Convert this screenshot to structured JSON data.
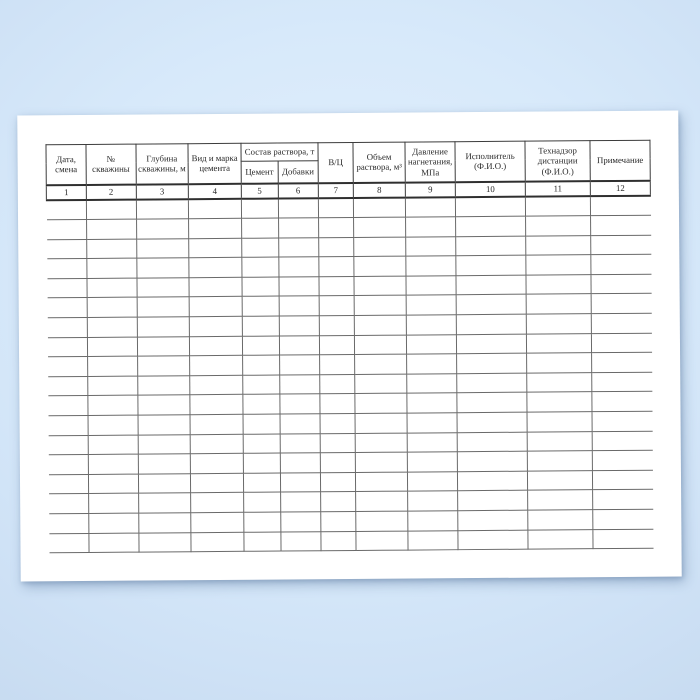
{
  "colors": {
    "background_light": "#e3f0fd",
    "background_edge": "#c5d9ef",
    "sheet": "#ffffff",
    "header_rule": "#3c3c3c",
    "grid_rule": "#6a6a6a",
    "text": "#2a2a2a"
  },
  "sheet": {
    "kind": "blank journal form page, slightly rotated, drop shadow"
  },
  "table": {
    "group_header": "Состав раствора, т",
    "headers": {
      "col1": "Дата, смена",
      "col2": "№ скважины",
      "col3": "Глубина скважины, м",
      "col4": "Вид и марка цемента",
      "col5": "Цемент",
      "col6": "Добавки",
      "col7": "В/Ц",
      "col8": "Объем раствора, м³",
      "col9": "Давление нагнетания, МПа",
      "col10": "Исполнитель (Ф.И.О.)",
      "col11": "Технадзор дистанции (Ф.И.О.)",
      "col12": "Примечание"
    },
    "column_numbers": [
      "1",
      "2",
      "3",
      "4",
      "5",
      "6",
      "7",
      "8",
      "9",
      "10",
      "11",
      "12"
    ],
    "data_rows": 18,
    "cell_values": ""
  }
}
